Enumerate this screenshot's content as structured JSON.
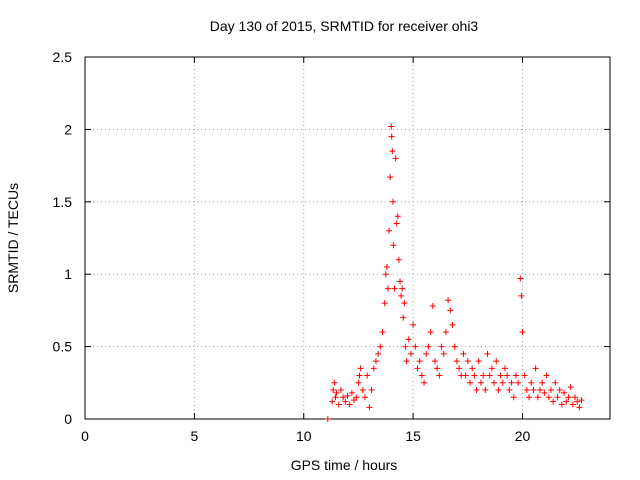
{
  "chart_data": {
    "type": "scatter",
    "title": "Day 130 of 2015, SRMTID for receiver ohi3",
    "xlabel": "GPS time / hours",
    "ylabel": "SRMTID / TECUs",
    "xlim": [
      0,
      24
    ],
    "ylim": [
      0,
      2.5
    ],
    "x_ticks": [
      0,
      5,
      10,
      15,
      20
    ],
    "x_tick_labels": [
      "0",
      "5",
      "10",
      "15",
      "20"
    ],
    "y_ticks": [
      0,
      0.5,
      1,
      1.5,
      2,
      2.5
    ],
    "y_tick_labels": [
      "0",
      "0.5",
      "1",
      "1.5",
      "2",
      "2.5"
    ],
    "grid": true,
    "marker": "+",
    "color": "#ff0000",
    "series": [
      {
        "name": "SRMTID",
        "x": [
          11.1,
          11.3,
          11.35,
          11.4,
          11.45,
          11.5,
          11.6,
          11.7,
          11.8,
          11.9,
          12.0,
          12.1,
          12.2,
          12.3,
          12.4,
          12.5,
          12.55,
          12.6,
          12.7,
          12.8,
          12.9,
          13.0,
          13.1,
          13.2,
          13.3,
          13.4,
          13.5,
          13.6,
          13.7,
          13.75,
          13.8,
          13.85,
          13.9,
          13.95,
          14.0,
          14.02,
          14.05,
          14.08,
          14.1,
          14.15,
          14.2,
          14.25,
          14.3,
          14.35,
          14.4,
          14.45,
          14.5,
          14.55,
          14.6,
          14.65,
          14.7,
          14.8,
          14.9,
          15.0,
          15.1,
          15.2,
          15.3,
          15.4,
          15.5,
          15.6,
          15.7,
          15.8,
          15.9,
          16.0,
          16.1,
          16.2,
          16.3,
          16.4,
          16.5,
          16.6,
          16.7,
          16.8,
          16.9,
          17.0,
          17.1,
          17.2,
          17.3,
          17.4,
          17.5,
          17.6,
          17.7,
          17.8,
          17.9,
          18.0,
          18.1,
          18.2,
          18.3,
          18.4,
          18.5,
          18.6,
          18.7,
          18.8,
          18.9,
          19.0,
          19.1,
          19.2,
          19.3,
          19.4,
          19.5,
          19.6,
          19.7,
          19.8,
          19.9,
          19.95,
          20.0,
          20.1,
          20.2,
          20.3,
          20.4,
          20.5,
          20.6,
          20.7,
          20.8,
          20.9,
          21.0,
          21.1,
          21.2,
          21.3,
          21.4,
          21.5,
          21.6,
          21.7,
          21.8,
          21.9,
          22.0,
          22.1,
          22.2,
          22.3,
          22.4,
          22.5,
          22.6,
          22.7
        ],
        "y": [
          0.0,
          0.12,
          0.2,
          0.25,
          0.15,
          0.18,
          0.1,
          0.2,
          0.15,
          0.12,
          0.16,
          0.1,
          0.18,
          0.13,
          0.15,
          0.25,
          0.3,
          0.35,
          0.2,
          0.15,
          0.3,
          0.08,
          0.2,
          0.35,
          0.4,
          0.45,
          0.5,
          0.6,
          0.8,
          1.0,
          1.05,
          0.9,
          1.3,
          1.67,
          2.02,
          1.95,
          1.85,
          1.5,
          1.2,
          0.9,
          1.8,
          1.35,
          1.4,
          1.1,
          0.95,
          0.85,
          0.9,
          0.7,
          0.8,
          0.5,
          0.4,
          0.55,
          0.45,
          0.65,
          0.5,
          0.35,
          0.4,
          0.3,
          0.25,
          0.45,
          0.5,
          0.6,
          0.78,
          0.4,
          0.35,
          0.3,
          0.5,
          0.45,
          0.6,
          0.82,
          0.75,
          0.65,
          0.5,
          0.4,
          0.35,
          0.3,
          0.45,
          0.3,
          0.4,
          0.25,
          0.35,
          0.3,
          0.2,
          0.4,
          0.25,
          0.3,
          0.2,
          0.45,
          0.3,
          0.35,
          0.25,
          0.4,
          0.2,
          0.3,
          0.25,
          0.35,
          0.3,
          0.2,
          0.25,
          0.15,
          0.3,
          0.25,
          0.97,
          0.85,
          0.6,
          0.3,
          0.2,
          0.15,
          0.25,
          0.2,
          0.35,
          0.15,
          0.2,
          0.25,
          0.18,
          0.3,
          0.15,
          0.2,
          0.12,
          0.25,
          0.15,
          0.2,
          0.1,
          0.18,
          0.12,
          0.15,
          0.22,
          0.1,
          0.15,
          0.12,
          0.08,
          0.13
        ]
      }
    ]
  }
}
